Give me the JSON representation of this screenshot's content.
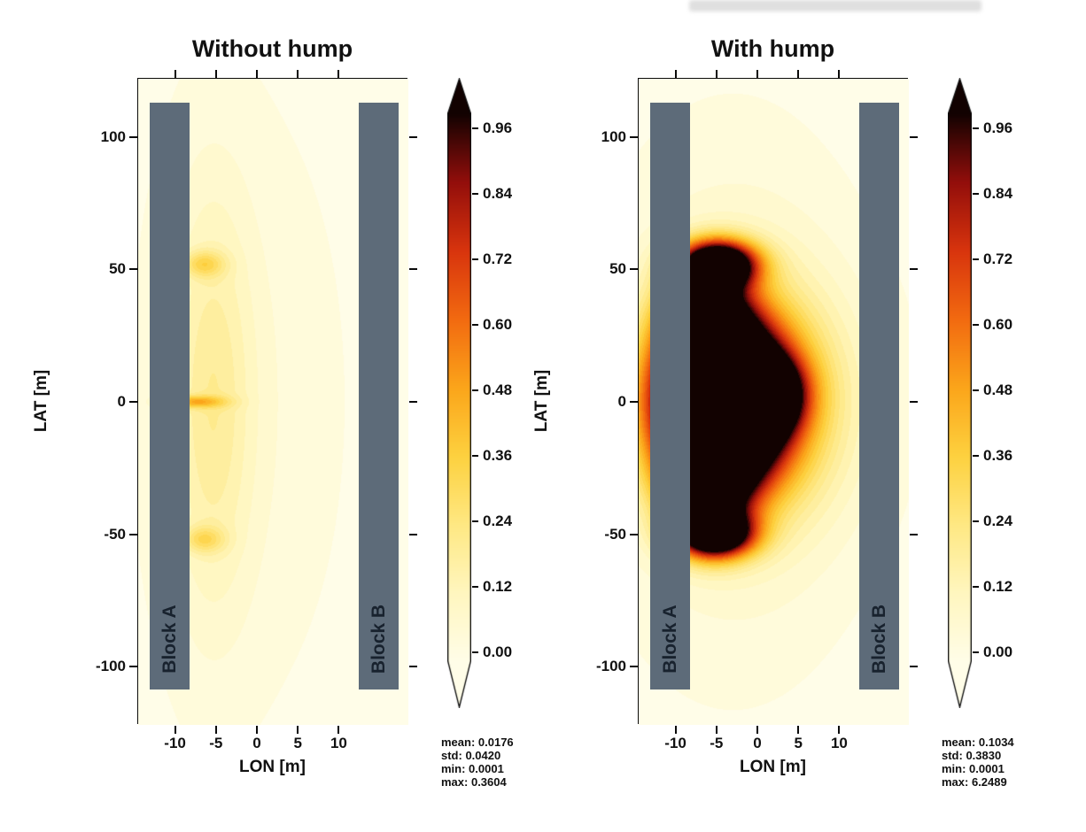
{
  "figure": {
    "background": "#ffffff"
  },
  "block_color": "#5d6b79",
  "block_label_color": "#18222e",
  "plot_margin_color": "#fbf5dc",
  "colormap_stops": [
    {
      "t": 0,
      "color": "#FFFDE8"
    },
    {
      "t": 0.125,
      "color": "#FFF6BF"
    },
    {
      "t": 0.25,
      "color": "#FEE883"
    },
    {
      "t": 0.375,
      "color": "#FDD13F"
    },
    {
      "t": 0.5,
      "color": "#FBA51A"
    },
    {
      "t": 0.625,
      "color": "#F26A10"
    },
    {
      "t": 0.75,
      "color": "#D8340D"
    },
    {
      "t": 0.875,
      "color": "#930E0B"
    },
    {
      "t": 1,
      "color": "#120201"
    }
  ],
  "chart_data": [
    {
      "type": "heatmap",
      "title": "Without hump",
      "xlabel": "LON [m]",
      "ylabel": "LAT [m]",
      "xlim": [
        -14.5,
        18.5
      ],
      "ylim": [
        -122,
        122
      ],
      "x_ticks": [
        -10,
        -5,
        0,
        5,
        10
      ],
      "y_ticks": [
        100,
        50,
        0,
        -50,
        -100
      ],
      "colorbar_tick_labels": [
        "0.96",
        "0.84",
        "0.72",
        "0.60",
        "0.48",
        "0.36",
        "0.24",
        "0.12",
        "0.00"
      ],
      "colorbar_range": [
        0,
        0.96
      ],
      "vmax": 0.96,
      "contour_levels": 26,
      "blocks": [
        {
          "label": "Block A",
          "lon_min": -13.1,
          "lon_max": -8.2,
          "lat_min": -110,
          "lat_max": 113
        },
        {
          "label": "Block B",
          "lon_min": 12.4,
          "lon_max": 17.3,
          "lat_min": -110,
          "lat_max": 113
        }
      ],
      "stats_lines": [
        "mean: 0.0176",
        "std: 0.0420",
        "min: 0.0001",
        "max: 0.3604"
      ],
      "field_blobs": [
        {
          "lon": -5.5,
          "lat": 0,
          "sx": 3.5,
          "sy": 55,
          "a": 0.16
        },
        {
          "lon": -6.5,
          "lat": 52,
          "sx": 1.8,
          "sy": 3.5,
          "a": 0.22
        },
        {
          "lon": -7.6,
          "lat": 0,
          "sx": 2.6,
          "sy": 1.6,
          "a": 0.3
        },
        {
          "lon": -6.5,
          "lat": -52,
          "sx": 1.8,
          "sy": 3.5,
          "a": 0.2
        },
        {
          "lon": -2,
          "lat": 0,
          "sx": 9,
          "sy": 80,
          "a": 0.05
        }
      ]
    },
    {
      "type": "heatmap",
      "title": "With hump",
      "xlabel": "LON [m]",
      "ylabel": "LAT [m]",
      "xlim": [
        -14.5,
        18.5
      ],
      "ylim": [
        -122,
        122
      ],
      "x_ticks": [
        -10,
        -5,
        0,
        5,
        10
      ],
      "y_ticks": [
        100,
        50,
        0,
        -50,
        -100
      ],
      "colorbar_tick_labels": [
        "0.96",
        "0.84",
        "0.72",
        "0.60",
        "0.48",
        "0.36",
        "0.24",
        "0.12",
        "0.00"
      ],
      "colorbar_range": [
        0,
        0.96
      ],
      "vmax": 0.96,
      "contour_levels": 26,
      "blocks": [
        {
          "label": "Block A",
          "lon_min": -13.1,
          "lon_max": -8.2,
          "lat_min": -110,
          "lat_max": 113
        },
        {
          "label": "Block B",
          "lon_min": 12.4,
          "lon_max": 17.3,
          "lat_min": -110,
          "lat_max": 113
        }
      ],
      "stats_lines": [
        "mean: 0.1034",
        "std: 0.3830",
        "min: 0.0001",
        "max: 6.2489"
      ],
      "field_blobs": [
        {
          "lon": -4.5,
          "lat": 0,
          "sx": 5.2,
          "sy": 20,
          "a": 2.2
        },
        {
          "lon": 0.5,
          "lat": 3,
          "sx": 3.2,
          "sy": 9,
          "a": 0.9
        },
        {
          "lon": -6,
          "lat": 32,
          "sx": 3.5,
          "sy": 13,
          "a": 0.85
        },
        {
          "lon": -6,
          "lat": -32,
          "sx": 3.5,
          "sy": 13,
          "a": 0.85
        },
        {
          "lon": -4.8,
          "lat": 52,
          "sx": 3.2,
          "sy": 6,
          "a": 1.3
        },
        {
          "lon": -5.2,
          "lat": -50,
          "sx": 3.2,
          "sy": 6,
          "a": 1.2
        },
        {
          "lon": -1,
          "lat": 0,
          "sx": 8,
          "sy": 30,
          "a": 0.35
        },
        {
          "lon": -3,
          "lat": 0,
          "sx": 10,
          "sy": 60,
          "a": 0.12
        }
      ]
    }
  ]
}
